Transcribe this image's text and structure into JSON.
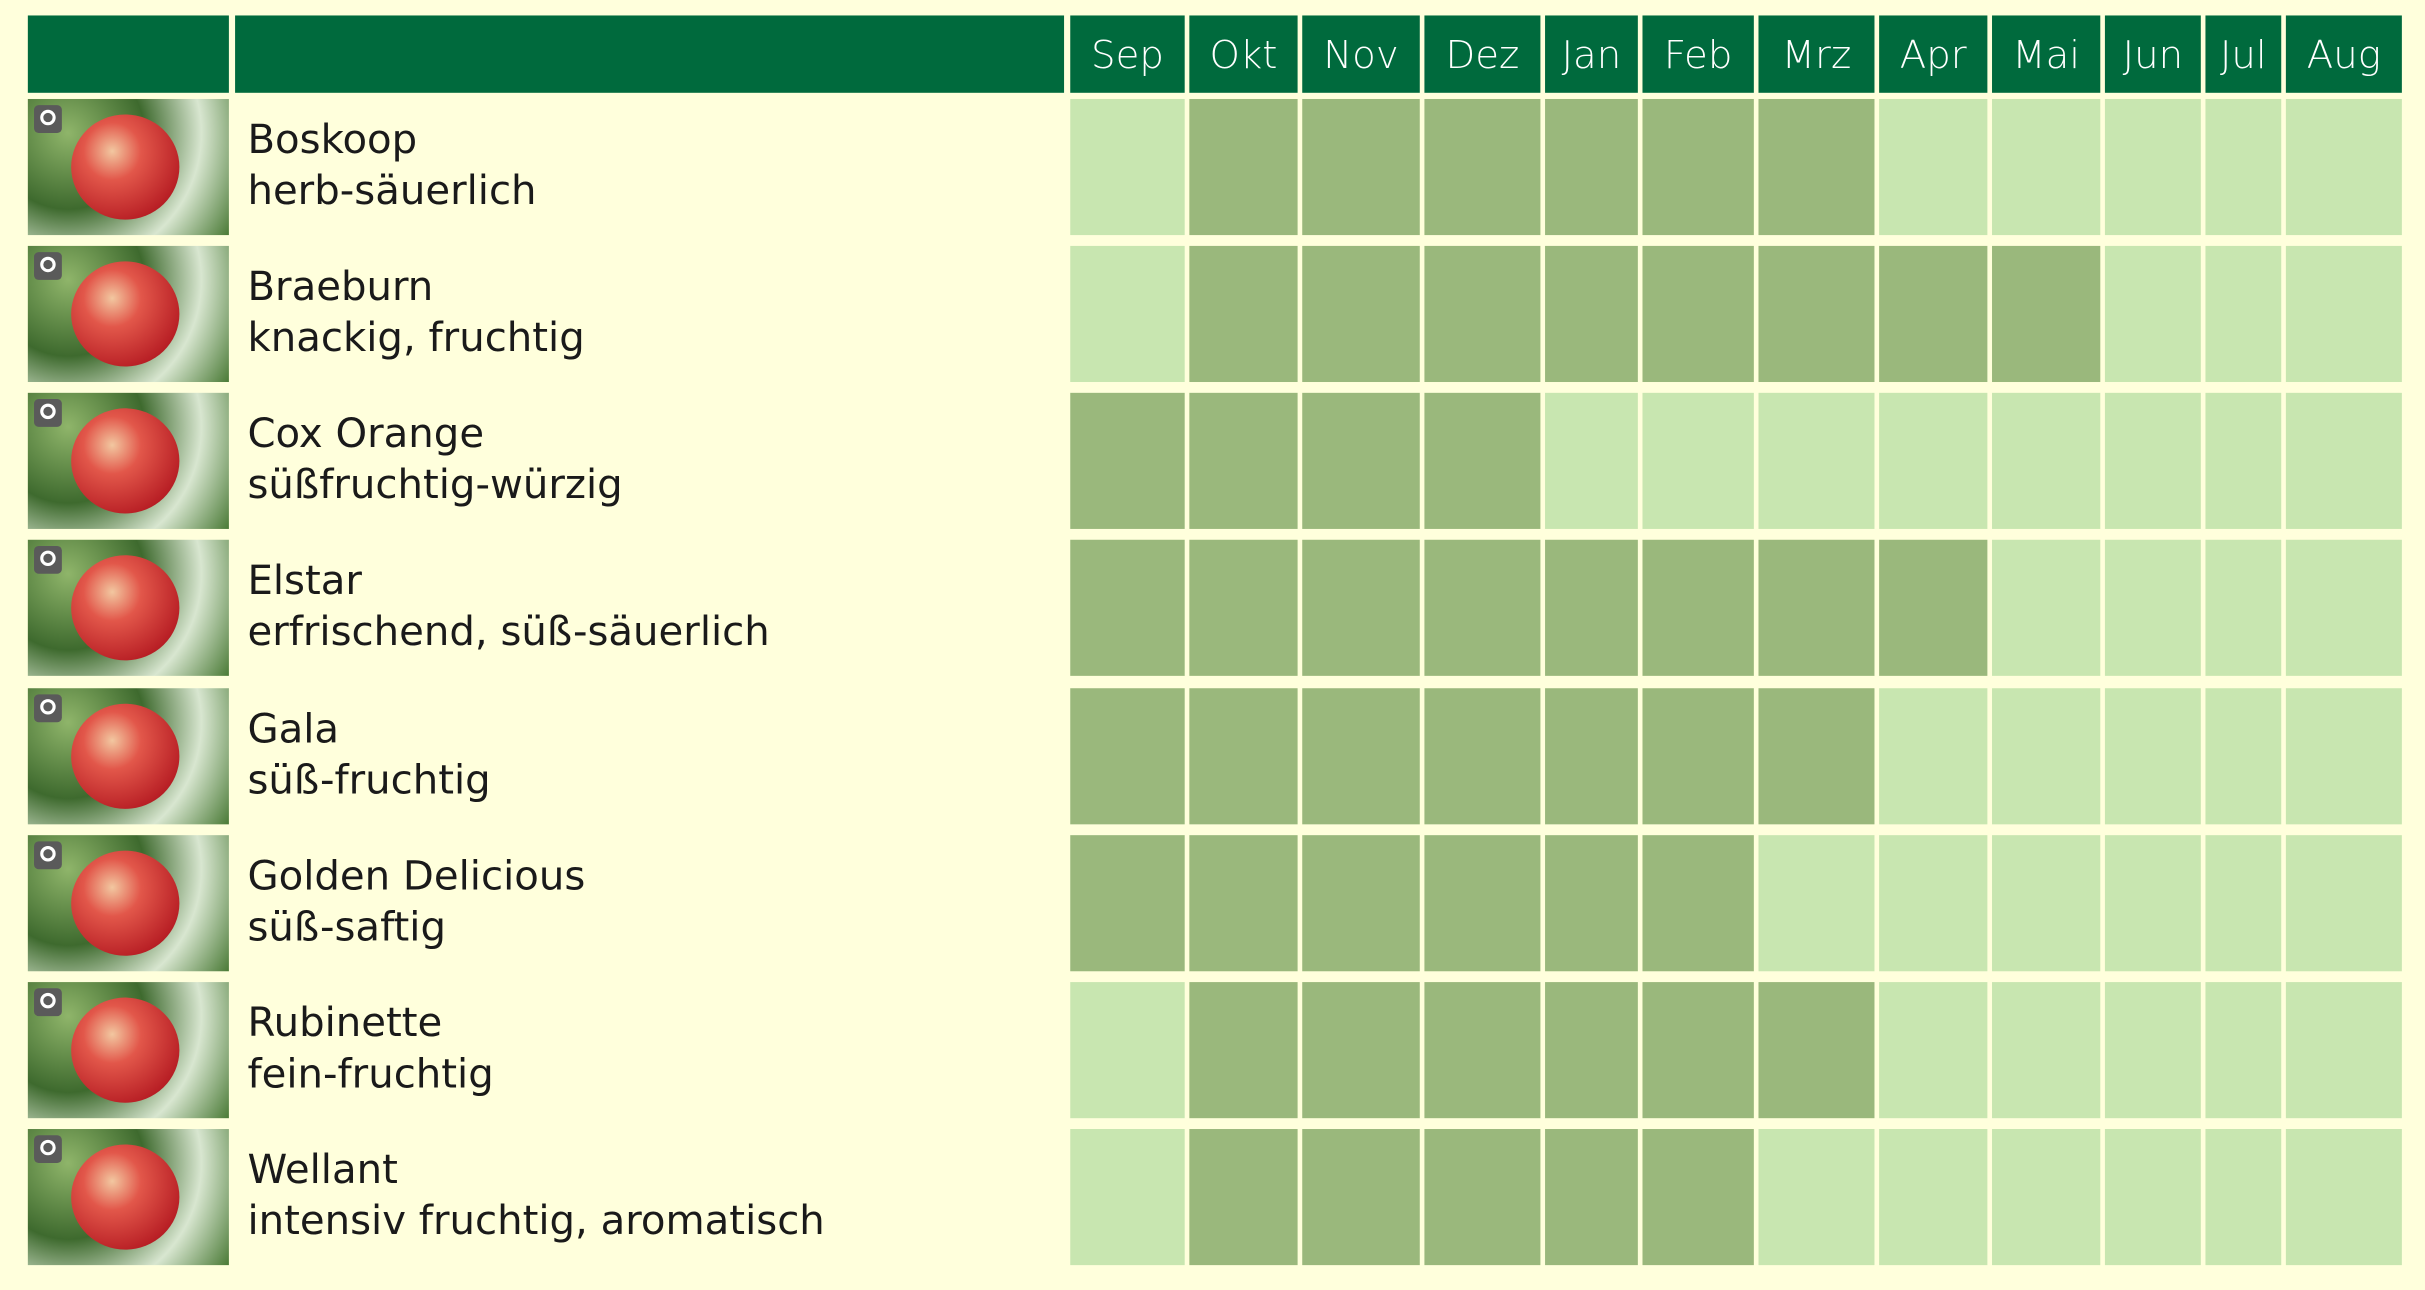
{
  "months": [
    "Sep",
    "Okt",
    "Nov",
    "Dez",
    "Jan",
    "Feb",
    "Mrz",
    "Apr",
    "Mai",
    "Jun",
    "Jul",
    "Aug"
  ],
  "rows": [
    {
      "name": "Boskoop",
      "description": "herb-säuerlich",
      "available": [
        false,
        true,
        true,
        true,
        true,
        true,
        true,
        false,
        false,
        false,
        false,
        false
      ]
    },
    {
      "name": "Braeburn",
      "description": "knackig, fruchtig",
      "available": [
        false,
        true,
        true,
        true,
        true,
        true,
        true,
        true,
        true,
        false,
        false,
        false
      ]
    },
    {
      "name": "Cox Orange",
      "description": "süßfruchtig-würzig",
      "available": [
        true,
        true,
        true,
        true,
        false,
        false,
        false,
        false,
        false,
        false,
        false,
        false
      ]
    },
    {
      "name": "Elstar",
      "description": "erfrischend, süß-säuerlich",
      "available": [
        true,
        true,
        true,
        true,
        true,
        true,
        true,
        true,
        false,
        false,
        false,
        false
      ]
    },
    {
      "name": "Gala",
      "description": "süß-fruchtig",
      "available": [
        true,
        true,
        true,
        true,
        true,
        true,
        true,
        false,
        false,
        false,
        false,
        false
      ]
    },
    {
      "name": "Golden Delicious",
      "description": "süß-saftig",
      "available": [
        true,
        true,
        true,
        true,
        true,
        true,
        false,
        false,
        false,
        false,
        false,
        false
      ]
    },
    {
      "name": "Rubinette",
      "description": "fein-fruchtig",
      "available": [
        false,
        true,
        true,
        true,
        true,
        true,
        true,
        false,
        false,
        false,
        false,
        false
      ]
    },
    {
      "name": "Wellant",
      "description": "intensiv fruchtig, aromatisch",
      "available": [
        false,
        true,
        true,
        true,
        true,
        true,
        false,
        false,
        false,
        false,
        false,
        false
      ]
    }
  ]
}
